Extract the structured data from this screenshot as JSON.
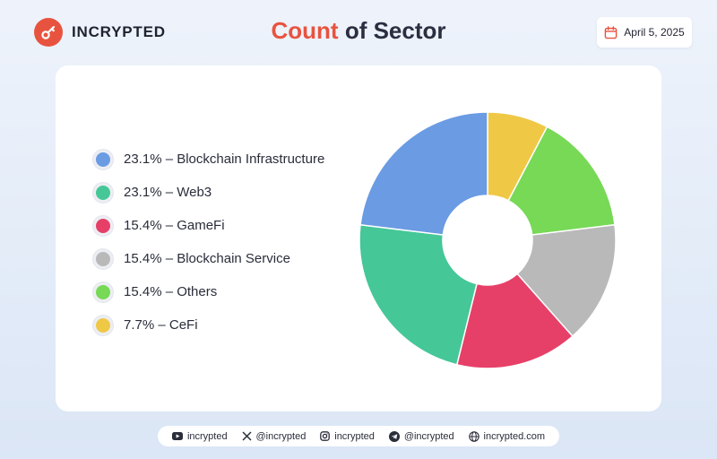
{
  "brand": {
    "name": "INCRYPTED"
  },
  "header": {
    "title_accent": "Count",
    "title_rest": "of Sector",
    "date": "April 5, 2025"
  },
  "chart_data": {
    "type": "pie",
    "style": "donut",
    "title": "Count of Sector",
    "series": [
      {
        "label": "Blockchain Infrastructure",
        "percent": 23.1,
        "color": "#6a9be3",
        "legend_text": "23.1% – Blockchain Infrastructure"
      },
      {
        "label": "Web3",
        "percent": 23.1,
        "color": "#45c798",
        "legend_text": "23.1% – Web3"
      },
      {
        "label": "GameFi",
        "percent": 15.4,
        "color": "#e64068",
        "legend_text": "15.4% – GameFi"
      },
      {
        "label": "Blockchain Service",
        "percent": 15.4,
        "color": "#b9b9b9",
        "legend_text": "15.4% – Blockchain Service"
      },
      {
        "label": "Others",
        "percent": 15.4,
        "color": "#77d955",
        "legend_text": "15.4% – Others"
      },
      {
        "label": "CeFi",
        "percent": 7.7,
        "color": "#efc846",
        "legend_text": "7.7% – CeFi"
      }
    ],
    "draw_order_clockwise_from_top": [
      "CeFi",
      "Others",
      "Blockchain Service",
      "GameFi",
      "Web3",
      "Blockchain Infrastructure"
    ],
    "legend_position": "left"
  },
  "footer": {
    "youtube": "incrypted",
    "x": "@incrypted",
    "instagram": "incrypted",
    "telegram": "@incrypted",
    "website": "incrypted.com"
  },
  "colors": {
    "accent": "#e8533f",
    "text": "#1f2230"
  }
}
